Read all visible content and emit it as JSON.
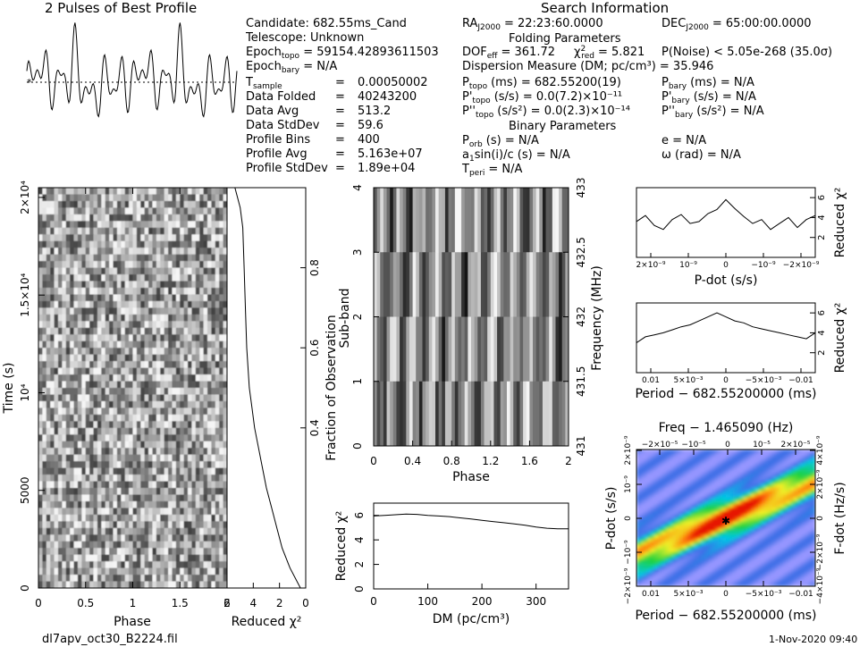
{
  "texts": {
    "profile_title": "2 Pulses of Best Profile",
    "search_title": "Search Information",
    "folding_title": "Folding Parameters",
    "binary_title": "Binary Parameters",
    "footer_file": "dl7apv_oct30_B2224.fil",
    "footer_date": "1-Nov-2020 09:40",
    "candidate": "Candidate:  682.55ms_Cand",
    "telescope": "Telescope:  Unknown",
    "epoch_topo": "Epoch",
    "epoch_topo_sub": "topo",
    "epoch_topo_val": " = 59154.42893611503",
    "epoch_bary": "Epoch",
    "epoch_bary_sub": "bary",
    "epoch_bary_val": " = N/A",
    "params": [
      {
        "label": "T",
        "sub": "sample",
        "value": "0.00050002"
      },
      {
        "label": "Data Folded",
        "sub": "",
        "value": "40243200"
      },
      {
        "label": "Data Avg",
        "sub": "",
        "value": "513.2"
      },
      {
        "label": "Data StdDev",
        "sub": "",
        "value": "59.6"
      },
      {
        "label": "Profile Bins",
        "sub": "",
        "value": "400"
      },
      {
        "label": "Profile Avg",
        "sub": "",
        "value": "5.163e+07"
      },
      {
        "label": "Profile StdDev",
        "sub": "",
        "value": "1.89e+04"
      }
    ],
    "ra": "= 22:23:60.0000",
    "dec": "= 65:00:00.0000",
    "dof": "= 361.72",
    "chi_red": "= 5.821",
    "pnoise": "P(Noise) < 5.05e-268  (35.0σ)",
    "dm_line": "Dispersion Measure (DM; pc/cm³) = 35.946",
    "ptopo": "(ms)  =  682.55200(19)",
    "pbary": "(ms) = N/A",
    "pdtopo": "(s/s) = 0.0(7.2)×10⁻¹¹",
    "pdbary": "(s/s) = N/A",
    "pddtopo": "(s/s²) = 0.0(2.3)×10⁻¹⁴",
    "pddbary": "(s/s²) = N/A",
    "porb": "(s) = N/A",
    "ecc": "e = N/A",
    "asini": "sin(i)/c (s) = N/A",
    "omega": "ω (rad) = N/A",
    "tperi": "= N/A"
  },
  "colors": {
    "axis": "#000000",
    "background": "#ffffff"
  },
  "chart_data": [
    {
      "type": "line",
      "name": "profile",
      "x": [
        0,
        0.1,
        0.2,
        0.3,
        0.4,
        0.5,
        0.6,
        0.7,
        0.8,
        0.9,
        1.0,
        1.1,
        1.2,
        1.3,
        1.4,
        1.5,
        1.6,
        1.7,
        1.8,
        1.9,
        2.0
      ],
      "values": [
        0.2,
        -0.3,
        0.6,
        -0.8,
        0.9,
        -0.5,
        1.0,
        0.3,
        -0.6,
        -0.9,
        0.2,
        -0.3,
        0.6,
        -0.8,
        0.9,
        -0.5,
        1.0,
        0.3,
        -0.6,
        -0.9,
        0.2
      ]
    },
    {
      "type": "heatmap",
      "name": "time-phase",
      "xlabel": "Phase",
      "ylabel": "Time (s)",
      "xlim": [
        0,
        2
      ],
      "ylim": [
        0,
        20500
      ],
      "xticks": [
        "0",
        "0.5",
        "1",
        "1.5",
        "2"
      ],
      "yticks": [
        "0",
        "5000",
        "10⁴",
        "1.5×10⁴",
        "2×10⁴"
      ]
    },
    {
      "type": "line",
      "name": "time-chi2",
      "xlabel": "Reduced χ²",
      "ylabel": "Fraction of Observation",
      "xlim": [
        6,
        0
      ],
      "xticks": [
        "6",
        "4",
        "2",
        "0"
      ],
      "yticks": [
        "0.4",
        "0.6",
        "0.8"
      ],
      "x": [
        0.4,
        1.2,
        1.8,
        2.2,
        2.6,
        3.0,
        3.3,
        3.6,
        3.9,
        4.1,
        4.3,
        4.5,
        4.6,
        4.7,
        4.8,
        5.0,
        5.4
      ],
      "y": [
        0.0,
        0.05,
        0.1,
        0.15,
        0.2,
        0.25,
        0.3,
        0.35,
        0.4,
        0.45,
        0.5,
        0.6,
        0.7,
        0.8,
        0.9,
        0.95,
        1.0
      ]
    },
    {
      "type": "heatmap",
      "name": "subband-phase",
      "xlabel": "Phase",
      "ylabel": "Sub-band",
      "y2label": "Frequency (MHz)",
      "xlim": [
        0,
        2
      ],
      "ylim": [
        0,
        4
      ],
      "xticks": [
        "0",
        "0.4",
        "0.8",
        "1.2",
        "1.6",
        "2"
      ],
      "yticks": [
        "0",
        "1",
        "2",
        "3",
        "4"
      ],
      "y2ticks": [
        "431",
        "431.5",
        "432",
        "432.5",
        "433"
      ]
    },
    {
      "type": "line",
      "name": "dm-chi2",
      "xlabel": "DM (pc/cm³)",
      "ylabel": "Reduced χ²",
      "xlim": [
        0,
        360
      ],
      "ylim": [
        0,
        7
      ],
      "xticks": [
        "0",
        "100",
        "200",
        "300"
      ],
      "yticks": [
        "0",
        "2",
        "4",
        "6"
      ],
      "x": [
        0,
        20,
        40,
        60,
        80,
        100,
        120,
        140,
        160,
        180,
        200,
        220,
        240,
        260,
        280,
        300,
        320,
        340,
        360
      ],
      "y": [
        5.95,
        6.0,
        6.05,
        6.1,
        6.08,
        6.0,
        5.95,
        5.9,
        5.8,
        5.7,
        5.6,
        5.5,
        5.4,
        5.3,
        5.2,
        5.05,
        4.95,
        4.9,
        4.9
      ]
    },
    {
      "type": "line",
      "name": "pdot-chi2",
      "xlabel": "P-dot (s/s)",
      "ylabel": "Reduced χ²",
      "ylim": [
        0,
        7
      ],
      "xticks": [
        "2×10⁻⁹",
        "10⁻⁹",
        "0",
        "−10⁻⁹",
        "−2×10⁻⁹"
      ],
      "yticks": [
        "2",
        "4",
        "6"
      ],
      "y": [
        3.6,
        4.2,
        3.2,
        2.8,
        3.8,
        4.3,
        3.4,
        3.6,
        4.4,
        4.8,
        5.8,
        4.9,
        4.1,
        3.4,
        3.8,
        2.8,
        3.4,
        4.0,
        3.0,
        3.8,
        4.2
      ]
    },
    {
      "type": "line",
      "name": "period-chi2",
      "xlabel": "Period − 682.55200000 (ms)",
      "ylabel": "Reduced χ²",
      "ylim": [
        0,
        7
      ],
      "xticks": [
        "0.01",
        "5×10⁻³",
        "0",
        "−5×10⁻³",
        "−0.01"
      ],
      "yticks": [
        "2",
        "4",
        "6"
      ],
      "y": [
        3.0,
        3.6,
        3.8,
        4.0,
        4.3,
        4.6,
        4.8,
        5.2,
        5.6,
        6.0,
        5.6,
        5.2,
        5.0,
        4.6,
        4.4,
        4.2,
        4.0,
        3.8,
        3.6,
        3.4,
        4.0
      ]
    },
    {
      "type": "heatmap",
      "name": "period-pdot",
      "xlabel": "Period − 682.55200000 (ms)",
      "ylabel": "P-dot (s/s)",
      "x2label": "Freq − 1.465090 (Hz)",
      "y2label": "F-dot (Hz/s)",
      "xticks": [
        "0.01",
        "5×10⁻³",
        "0",
        "−5×10⁻³",
        "−0.01"
      ],
      "yticks": [
        "2×10⁻⁹",
        "10⁻⁹",
        "0",
        "−10⁻⁹",
        "−2×10⁻⁹"
      ],
      "x2ticks": [
        "−2×10⁻⁵",
        "−10⁻⁵",
        "0",
        "10⁻⁵",
        "2×10⁻⁵"
      ],
      "y2ticks": [
        "−4×10⁻⁹",
        "−2×10⁻⁹",
        "0",
        "2×10⁻⁹",
        "4×10⁻⁹"
      ]
    }
  ]
}
